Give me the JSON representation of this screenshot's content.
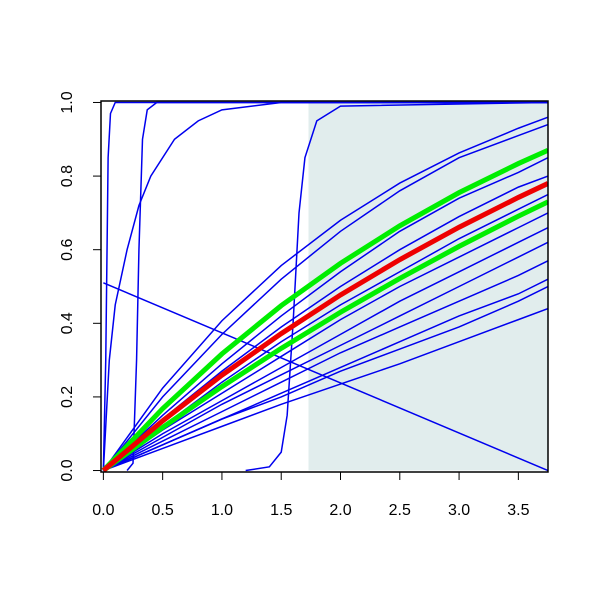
{
  "chart_data": {
    "type": "line",
    "x": [
      0,
      0.5,
      1,
      1.5,
      2,
      2.5,
      3,
      3.5,
      3.75
    ],
    "xlim": [
      -0.02,
      3.75
    ],
    "ylim": [
      -0.004,
      1.004
    ],
    "xticks": [
      {
        "value": 0,
        "label": "0.0"
      },
      {
        "value": 0.5,
        "label": "0.5"
      },
      {
        "value": 1,
        "label": "1.0"
      },
      {
        "value": 1.5,
        "label": "1.5"
      },
      {
        "value": 2,
        "label": "2.0"
      },
      {
        "value": 2.5,
        "label": "2.5"
      },
      {
        "value": 3,
        "label": "3.0"
      },
      {
        "value": 3.5,
        "label": "3.5"
      }
    ],
    "yticks": [
      {
        "value": 0,
        "label": "0.0"
      },
      {
        "value": 0.2,
        "label": "0.2"
      },
      {
        "value": 0.4,
        "label": "0.4"
      },
      {
        "value": 0.6,
        "label": "0.6"
      },
      {
        "value": 0.8,
        "label": "0.8"
      },
      {
        "value": 1,
        "label": "1.0"
      }
    ],
    "shaded_region": {
      "xlim": [
        1.73,
        3.75
      ],
      "ylim": [
        0,
        1
      ],
      "color": "#e1eded"
    },
    "series": [
      {
        "color": "#0000ee",
        "linewidth": 1.5,
        "values": [
          0,
          0.224,
          0.407,
          0.557,
          0.68,
          0.781,
          0.863,
          0.93,
          0.96
        ]
      },
      {
        "color": "#0000ee",
        "linewidth": 1.5,
        "values": [
          0,
          0.2,
          0.37,
          0.52,
          0.65,
          0.76,
          0.85,
          0.91,
          0.94
        ]
      },
      {
        "color": "#0000ee",
        "linewidth": 1.5,
        "values": [
          0,
          0.15,
          0.29,
          0.42,
          0.54,
          0.65,
          0.74,
          0.81,
          0.85
        ]
      },
      {
        "color": "#0000ee",
        "linewidth": 1.5,
        "values": [
          0,
          0.14,
          0.27,
          0.39,
          0.5,
          0.6,
          0.69,
          0.77,
          0.8
        ]
      },
      {
        "color": "#0000ee",
        "linewidth": 1.5,
        "values": [
          0,
          0.12,
          0.24,
          0.35,
          0.45,
          0.54,
          0.63,
          0.71,
          0.75
        ]
      },
      {
        "color": "#0000ee",
        "linewidth": 1.5,
        "values": [
          0,
          0.11,
          0.21,
          0.31,
          0.41,
          0.5,
          0.58,
          0.66,
          0.7
        ]
      },
      {
        "color": "#0000ee",
        "linewidth": 1.5,
        "values": [
          0,
          0.1,
          0.19,
          0.28,
          0.37,
          0.46,
          0.54,
          0.62,
          0.66
        ]
      },
      {
        "color": "#0000ee",
        "linewidth": 1.5,
        "values": [
          0,
          0.09,
          0.18,
          0.26,
          0.34,
          0.42,
          0.5,
          0.58,
          0.62
        ]
      },
      {
        "color": "#0000ee",
        "linewidth": 1.5,
        "values": [
          0,
          0.08,
          0.16,
          0.24,
          0.32,
          0.39,
          0.46,
          0.53,
          0.57
        ]
      },
      {
        "color": "#0000ee",
        "linewidth": 1.5,
        "values": [
          0,
          0.07,
          0.14,
          0.21,
          0.28,
          0.35,
          0.42,
          0.48,
          0.52
        ]
      },
      {
        "color": "#0000ee",
        "linewidth": 1.5,
        "values": [
          0,
          0.07,
          0.14,
          0.2,
          0.27,
          0.33,
          0.39,
          0.46,
          0.5
        ]
      },
      {
        "color": "#0000ee",
        "linewidth": 1.5,
        "values": [
          0,
          0.06,
          0.12,
          0.18,
          0.235,
          0.29,
          0.35,
          0.41,
          0.44
        ]
      },
      {
        "color": "#0000ee",
        "linewidth": 1.5,
        "x": [
          0,
          3.75
        ],
        "values": [
          0.51,
          0
        ]
      },
      {
        "color": "#0000ee",
        "linewidth": 1.5,
        "x": [
          0,
          0.02,
          0.04,
          0.06,
          0.1,
          3.75
        ],
        "values": [
          0,
          0.3,
          0.85,
          0.97,
          1,
          1
        ]
      },
      {
        "color": "#0000ee",
        "linewidth": 1.5,
        "x": [
          0,
          0.05,
          0.1,
          0.2,
          0.3,
          0.4,
          0.6,
          0.8,
          1,
          1.5,
          3.75
        ],
        "values": [
          0,
          0.3,
          0.45,
          0.6,
          0.72,
          0.8,
          0.9,
          0.95,
          0.98,
          1,
          1
        ]
      },
      {
        "color": "#0000ee",
        "linewidth": 1.5,
        "x": [
          0.2,
          0.25,
          0.28,
          0.3,
          0.33,
          0.37,
          0.45,
          3.75
        ],
        "values": [
          0,
          0.02,
          0.3,
          0.6,
          0.9,
          0.98,
          1,
          1
        ]
      },
      {
        "color": "#0000ee",
        "linewidth": 1.5,
        "x": [
          1.2,
          1.4,
          1.5,
          1.55,
          1.6,
          1.65,
          1.7,
          1.8,
          2,
          3.75
        ],
        "values": [
          0,
          0.01,
          0.05,
          0.15,
          0.4,
          0.7,
          0.85,
          0.95,
          0.99,
          1
        ]
      },
      {
        "color": "#00ee00",
        "linewidth": 5,
        "values": [
          0,
          0.168,
          0.317,
          0.448,
          0.563,
          0.665,
          0.755,
          0.834,
          0.87
        ]
      },
      {
        "color": "#00ee00",
        "linewidth": 5,
        "values": [
          0,
          0.117,
          0.228,
          0.332,
          0.43,
          0.522,
          0.609,
          0.691,
          0.73
        ]
      },
      {
        "color": "#ee0000",
        "linewidth": 5,
        "values": [
          0,
          0.135,
          0.259,
          0.372,
          0.477,
          0.573,
          0.661,
          0.742,
          0.78
        ]
      }
    ]
  }
}
